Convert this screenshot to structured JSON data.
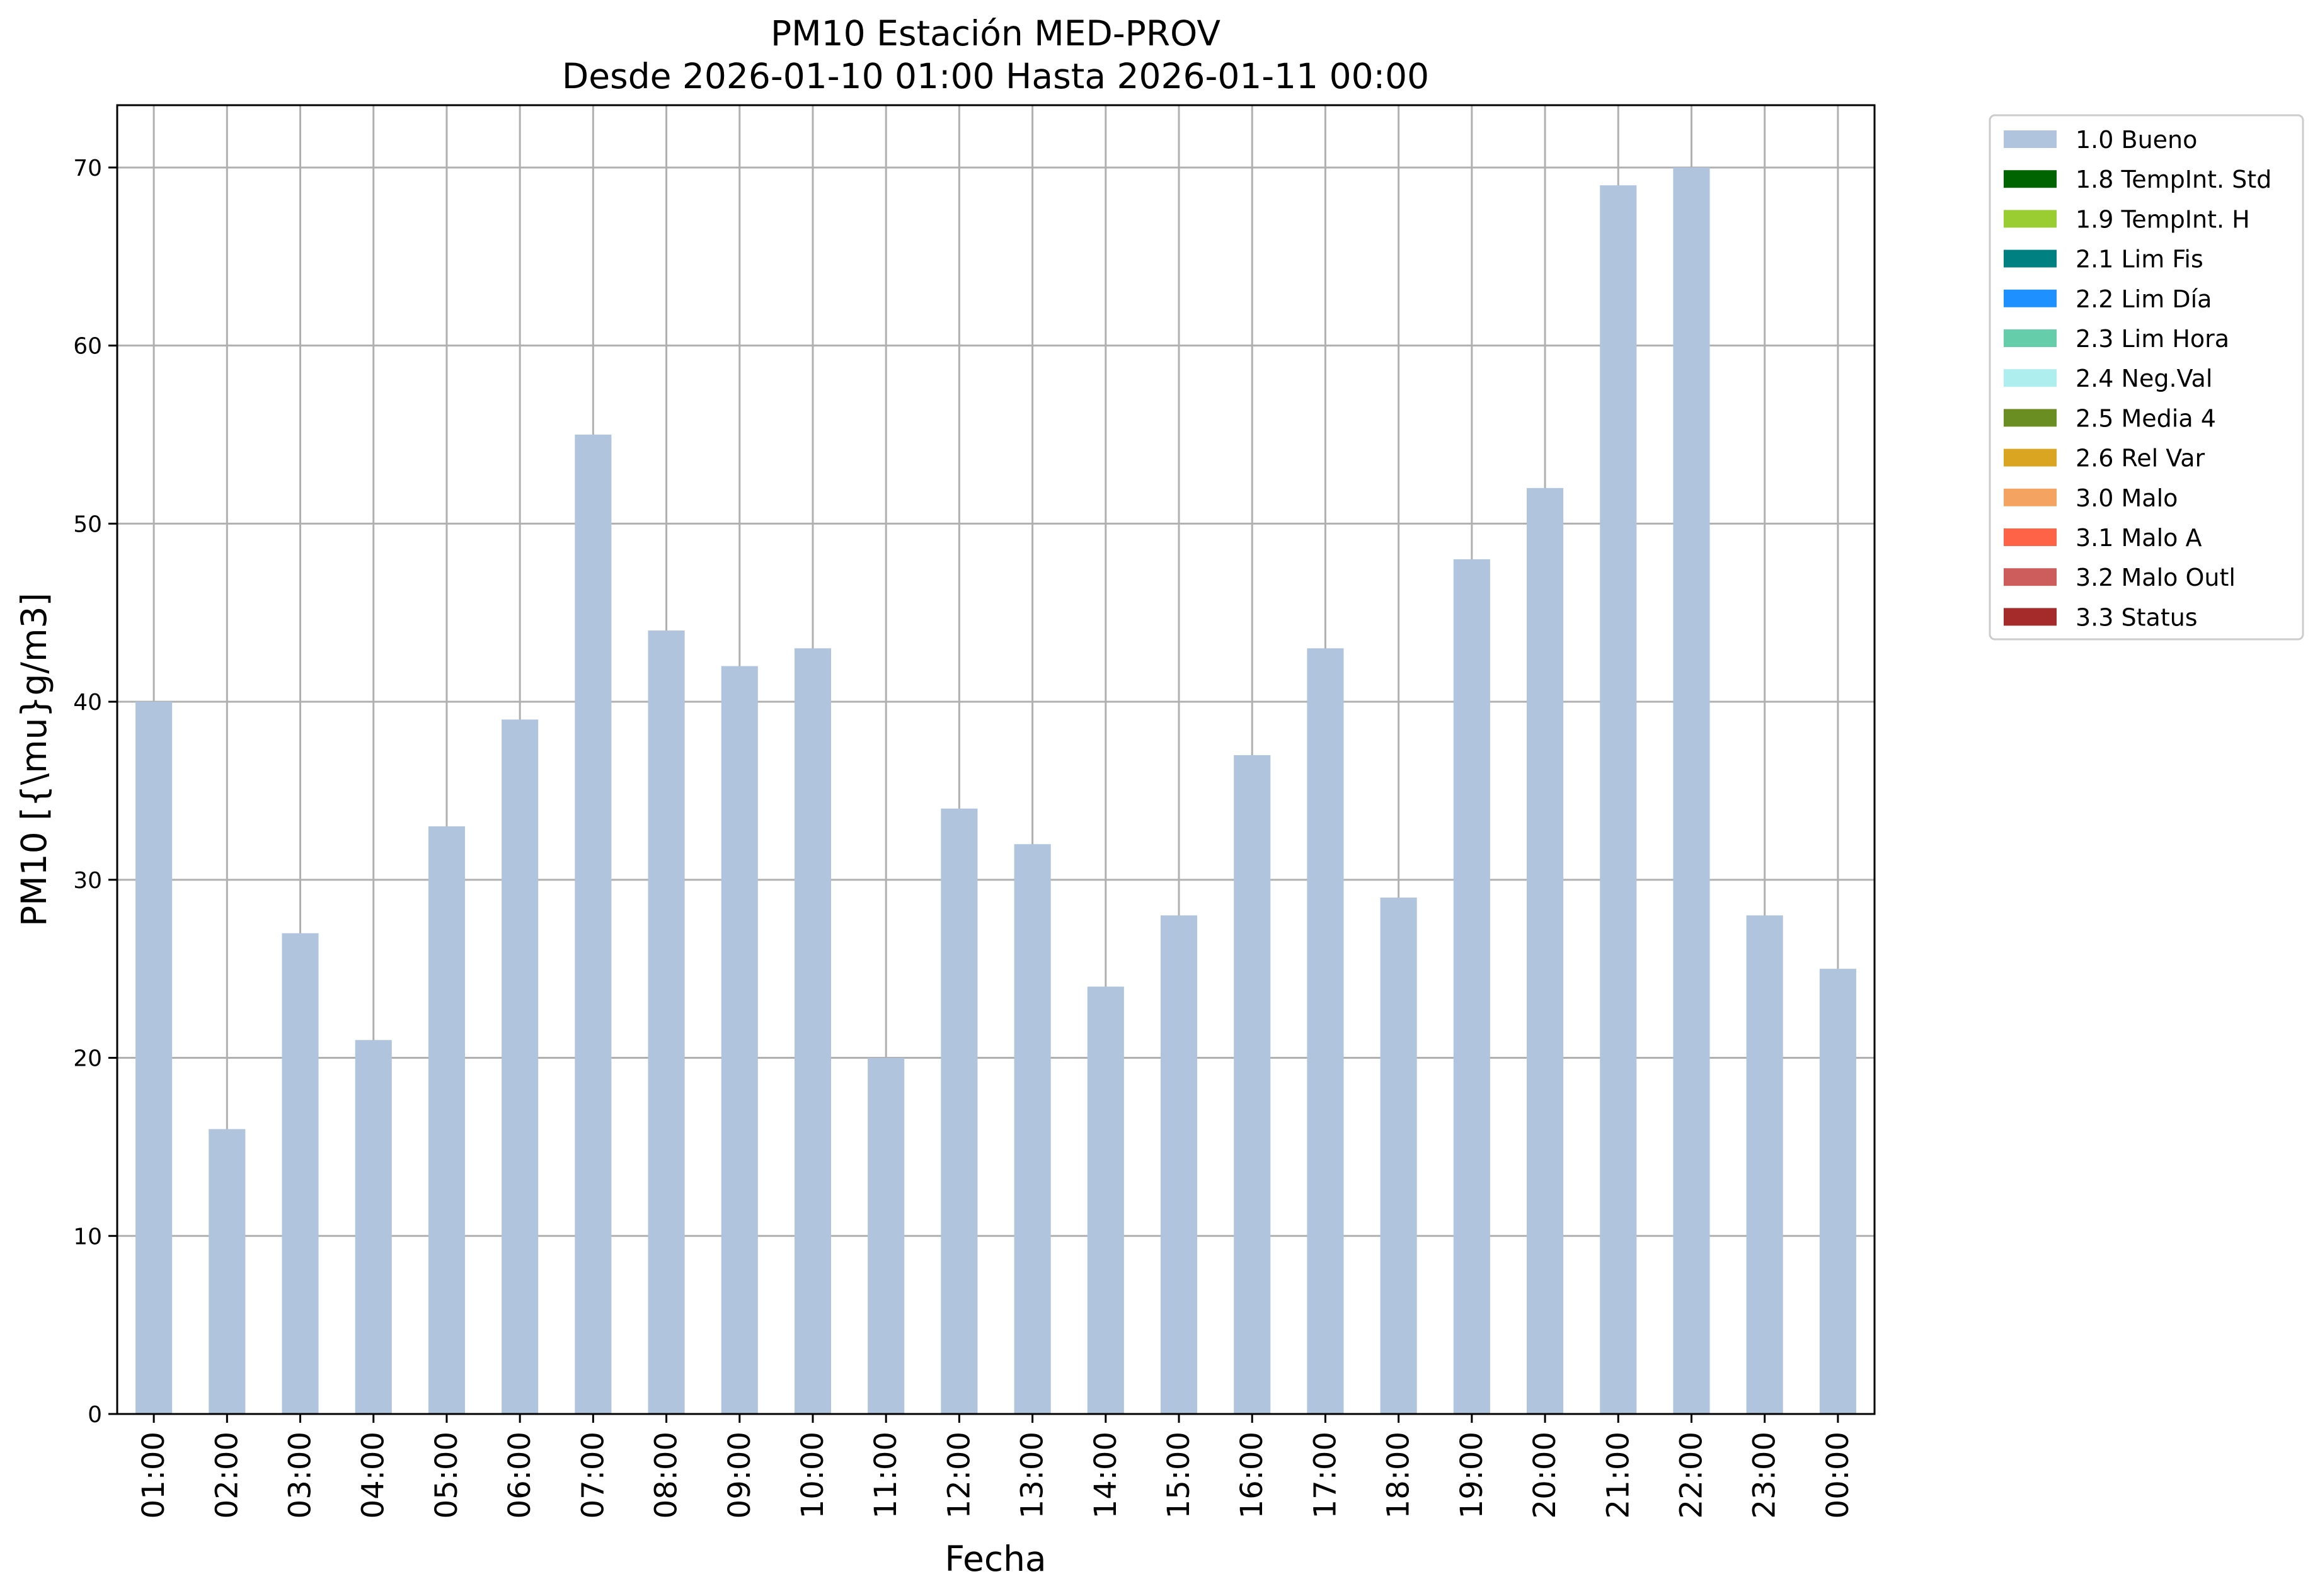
{
  "chart_data": {
    "type": "bar",
    "title": "PM10 Estación MED-PROV",
    "subtitle": "Desde 2026-01-10 01:00 Hasta 2026-01-11 00:00",
    "xlabel": "Fecha",
    "ylabel": "PM10 [{\\mu}g/m3]",
    "ylim": [
      0,
      73.5
    ],
    "yticks": [
      0,
      10,
      20,
      30,
      40,
      50,
      60,
      70
    ],
    "grid": true,
    "legend_position": "outside-top-right",
    "categories": [
      "01:00",
      "02:00",
      "03:00",
      "04:00",
      "05:00",
      "06:00",
      "07:00",
      "08:00",
      "09:00",
      "10:00",
      "11:00",
      "12:00",
      "13:00",
      "14:00",
      "15:00",
      "16:00",
      "17:00",
      "18:00",
      "19:00",
      "20:00",
      "21:00",
      "22:00",
      "23:00",
      "00:00"
    ],
    "series": [
      {
        "name": "1.0 Bueno",
        "color": "#b0c4de",
        "values": [
          40,
          16,
          27,
          21,
          33,
          39,
          55,
          44,
          42,
          43,
          20,
          34,
          32,
          24,
          28,
          37,
          43,
          29,
          48,
          52,
          69,
          70,
          28,
          25
        ]
      }
    ],
    "legend": [
      {
        "label": "1.0 Bueno",
        "color": "#b0c4de"
      },
      {
        "label": "1.8 TempInt. Std",
        "color": "#006400"
      },
      {
        "label": "1.9 TempInt. H",
        "color": "#9acd32"
      },
      {
        "label": "2.1 Lim Fis",
        "color": "#008080"
      },
      {
        "label": "2.2 Lim Día",
        "color": "#1e90ff"
      },
      {
        "label": "2.3 Lim Hora",
        "color": "#66cdaa"
      },
      {
        "label": "2.4 Neg.Val",
        "color": "#afeeee"
      },
      {
        "label": "2.5 Media 4",
        "color": "#6b8e23"
      },
      {
        "label": "2.6 Rel Var",
        "color": "#daa520"
      },
      {
        "label": "3.0 Malo",
        "color": "#f4a460"
      },
      {
        "label": "3.1 Malo A",
        "color": "#ff6347"
      },
      {
        "label": "3.2 Malo Outl",
        "color": "#cd5c5c"
      },
      {
        "label": "3.3 Status",
        "color": "#a52a2a"
      }
    ]
  }
}
